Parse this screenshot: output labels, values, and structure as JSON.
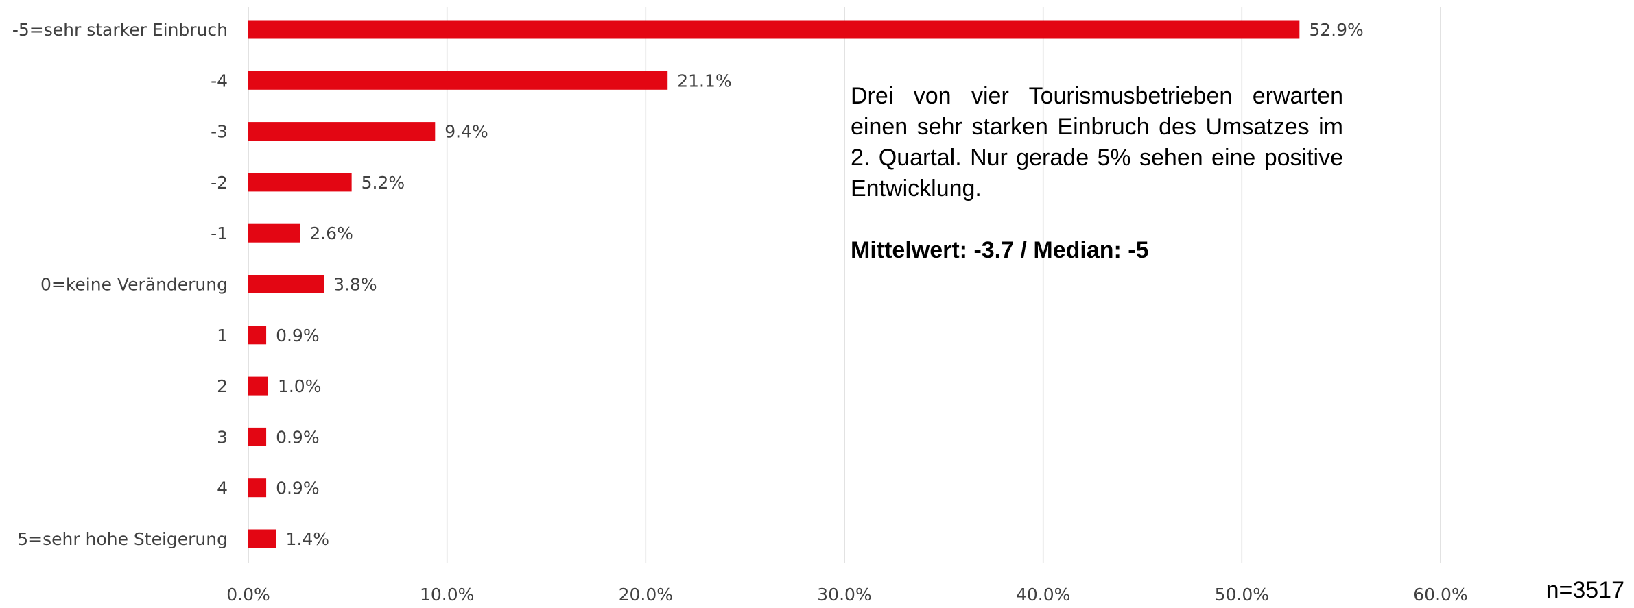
{
  "chart_data": {
    "type": "bar",
    "orientation": "horizontal",
    "categories": [
      "-5=sehr starker Einbruch",
      "-4",
      "-3",
      "-2",
      "-1",
      "0=keine Veränderung",
      "1",
      "2",
      "3",
      "4",
      "5=sehr hohe Steigerung"
    ],
    "values": [
      52.9,
      21.1,
      9.4,
      5.2,
      2.6,
      3.8,
      0.9,
      1.0,
      0.9,
      0.9,
      1.4
    ],
    "data_labels": [
      "52.9%",
      "21.1%",
      "9.4%",
      "5.2%",
      "2.6%",
      "3.8%",
      "0.9%",
      "1.0%",
      "0.9%",
      "0.9%",
      "1.4%"
    ],
    "x_ticks": [
      "0.0%",
      "10.0%",
      "20.0%",
      "30.0%",
      "40.0%",
      "50.0%",
      "60.0%"
    ],
    "xlim": [
      0,
      60
    ],
    "grid": "vertical",
    "bar_color": "#e30613",
    "grid_color": "#d9d9d9"
  },
  "annotation": {
    "text": "Drei von vier Tourismusbetrieben erwarten einen sehr starken Einbruch des Umsatzes im 2. Quartal. Nur gerade 5% sehen eine positive Entwicklung.",
    "stats": "Mittelwert: -3.7 / Median: -5"
  },
  "sample_size": "n=3517"
}
